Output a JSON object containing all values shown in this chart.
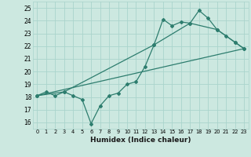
{
  "xlabel": "Humidex (Indice chaleur)",
  "ylabel": "",
  "xlim": [
    -0.5,
    23.5
  ],
  "ylim": [
    15.5,
    25.5
  ],
  "xticks": [
    0,
    1,
    2,
    3,
    4,
    5,
    6,
    7,
    8,
    9,
    10,
    11,
    12,
    13,
    14,
    15,
    16,
    17,
    18,
    19,
    20,
    21,
    22,
    23
  ],
  "yticks": [
    16,
    17,
    18,
    19,
    20,
    21,
    22,
    23,
    24,
    25
  ],
  "background_color": "#cce8e0",
  "grid_color": "#aad4cc",
  "line_color": "#2d7d6e",
  "line1_x": [
    0,
    1,
    2,
    3,
    4,
    5,
    6,
    7,
    8,
    9,
    10,
    11,
    12,
    13,
    14,
    15,
    16,
    17,
    18,
    19,
    20,
    21,
    22,
    23
  ],
  "line1_y": [
    18.1,
    18.4,
    18.1,
    18.4,
    18.1,
    17.8,
    15.9,
    17.3,
    18.1,
    18.3,
    19.0,
    19.2,
    20.4,
    22.1,
    24.1,
    23.6,
    23.9,
    23.8,
    24.8,
    24.2,
    23.3,
    22.8,
    22.3,
    21.8
  ],
  "line2_x": [
    0,
    3,
    13,
    17,
    20,
    22,
    23
  ],
  "line2_y": [
    18.1,
    18.4,
    22.1,
    23.8,
    23.3,
    22.3,
    21.8
  ],
  "line3_x": [
    0,
    23
  ],
  "line3_y": [
    18.1,
    21.8
  ]
}
